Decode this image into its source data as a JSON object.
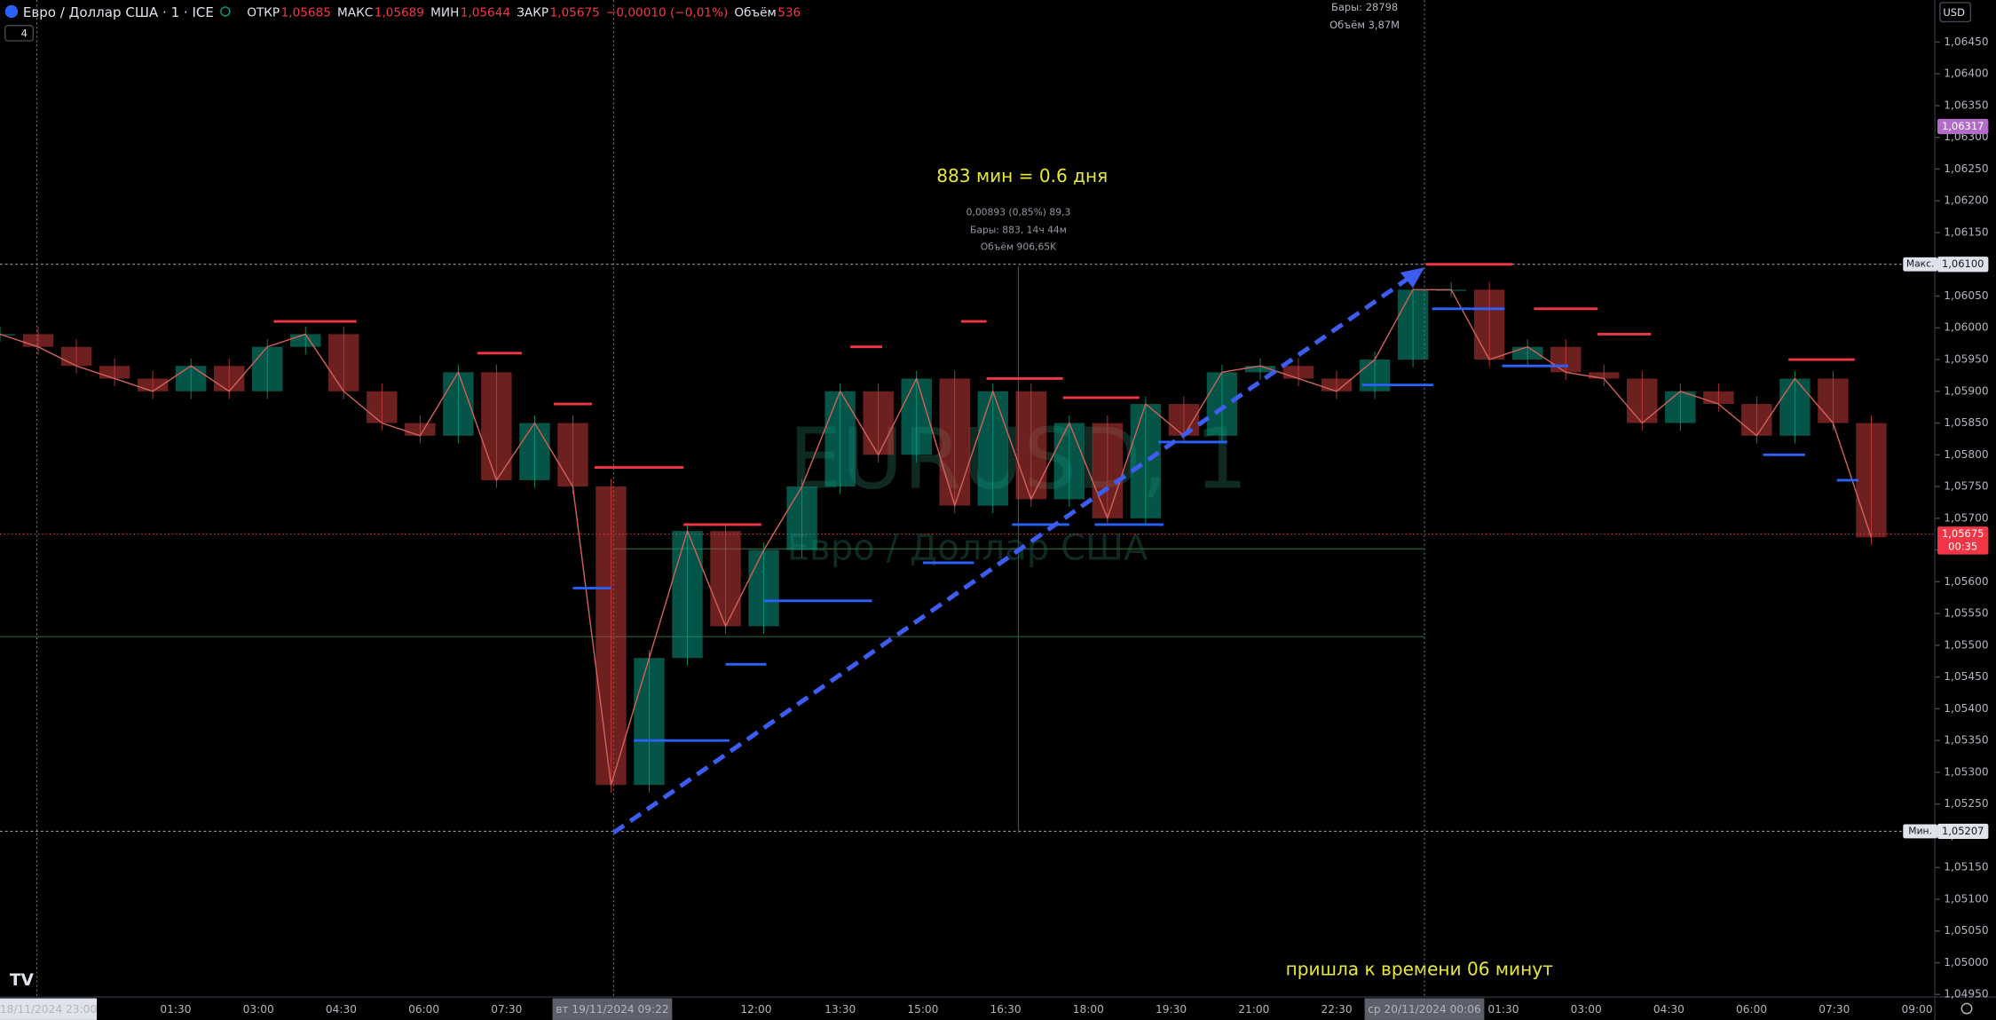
{
  "header": {
    "symbol": "Евро / Доллар США · 1 · ICE",
    "open_label": "ОТКР",
    "open": "1,05685",
    "high_label": "МАКС",
    "high": "1,05689",
    "low_label": "МИН",
    "low": "1,05644",
    "close_label": "ЗАКР",
    "close": "1,05675",
    "change": "−0,00010 (−0,01%)",
    "volume_label": "Объём",
    "volume": "536",
    "indicator": "4",
    "currency": "USD"
  },
  "top_info": {
    "bars": "Бары: 28798",
    "volume": "Объём 3,87M"
  },
  "watermark": {
    "ticker": "EURUSD, 1",
    "name": "Евро / Доллар США"
  },
  "price_axis": {
    "ylim": [
      1.0495,
      1.0645
    ],
    "ticks": [
      {
        "value": 1.0645,
        "label": "1,06450"
      },
      {
        "value": 1.064,
        "label": "1,06400"
      },
      {
        "value": 1.0635,
        "label": "1,06350"
      },
      {
        "value": 1.063,
        "label": "1,06300"
      },
      {
        "value": 1.0625,
        "label": "1,06250"
      },
      {
        "value": 1.062,
        "label": "1,06200"
      },
      {
        "value": 1.0615,
        "label": "1,06150"
      },
      {
        "value": 1.061,
        "label": "1,06100"
      },
      {
        "value": 1.0605,
        "label": "1,06050"
      },
      {
        "value": 1.06,
        "label": "1,06000"
      },
      {
        "value": 1.0595,
        "label": "1,05950"
      },
      {
        "value": 1.059,
        "label": "1,05900"
      },
      {
        "value": 1.0585,
        "label": "1,05850"
      },
      {
        "value": 1.058,
        "label": "1,05800"
      },
      {
        "value": 1.0575,
        "label": "1,05750"
      },
      {
        "value": 1.057,
        "label": "1,05700"
      },
      {
        "value": 1.0565,
        "label": "1,05650"
      },
      {
        "value": 1.056,
        "label": "1,05600"
      },
      {
        "value": 1.0555,
        "label": "1,05550"
      },
      {
        "value": 1.055,
        "label": "1,05500"
      },
      {
        "value": 1.0545,
        "label": "1,05450"
      },
      {
        "value": 1.054,
        "label": "1,05400"
      },
      {
        "value": 1.0535,
        "label": "1,05350"
      },
      {
        "value": 1.053,
        "label": "1,05300"
      },
      {
        "value": 1.0525,
        "label": "1,05250"
      },
      {
        "value": 1.052,
        "label": "1,05200"
      },
      {
        "value": 1.0515,
        "label": "1,05150"
      },
      {
        "value": 1.051,
        "label": "1,05100"
      },
      {
        "value": 1.0505,
        "label": "1,05050"
      },
      {
        "value": 1.05,
        "label": "1,05000"
      },
      {
        "value": 1.0495,
        "label": "1,04950"
      }
    ]
  },
  "badges": [
    {
      "value": 1.06317,
      "label": "1,06317",
      "color": "#b36bc9"
    },
    {
      "value": 1.061,
      "label": "1,06100",
      "tag": "Макс.",
      "color": "#e0e3eb"
    },
    {
      "value": 1.05675,
      "label": "1,05675",
      "timer": "00:35",
      "color": "#f23645"
    },
    {
      "value": 1.05207,
      "label": "1,05207",
      "tag": "Мин.",
      "color": "#e0e3eb"
    }
  ],
  "time_axis": [
    "18/11/2024  23:00",
    "01:30",
    "03:00",
    "04:30",
    "06:00",
    "07:30",
    "вт 19/11/2024  09:22",
    "12:00",
    "13:30",
    "15:00",
    "16:30",
    "18:00",
    "19:30",
    "21:00",
    "22:30",
    "ср 20/11/2024  00:06",
    "01:30",
    "03:00",
    "04:30",
    "06:00",
    "07:30",
    "09:00"
  ],
  "annotations": {
    "duration": "883 мин = 0.6 дня",
    "measure_change": "0,00893 (0,85%) 89,3",
    "measure_bars": "Бары: 883, 14ч 44м",
    "measure_volume": "Объём 906,65K",
    "note": "пришла к времени 06 минут"
  },
  "price_path": [
    1.0599,
    1.0597,
    1.0594,
    1.0592,
    1.059,
    1.0594,
    1.059,
    1.0597,
    1.0599,
    1.059,
    1.0585,
    1.0583,
    1.0593,
    1.0576,
    1.0585,
    1.0575,
    1.0528,
    1.0548,
    1.0568,
    1.0553,
    1.0565,
    1.0575,
    1.059,
    1.058,
    1.0592,
    1.0572,
    1.059,
    1.0573,
    1.0585,
    1.057,
    1.0588,
    1.0583,
    1.0593,
    1.0594,
    1.0592,
    1.059,
    1.0595,
    1.0606,
    1.0606,
    1.0595,
    1.0597,
    1.0593,
    1.0592,
    1.0585,
    1.059,
    1.0588,
    1.0583,
    1.0592,
    1.0585,
    1.0567
  ],
  "high_levels": [
    1.0601,
    1.0596,
    1.0588,
    1.0578,
    1.0569,
    1.0597,
    1.0601,
    1.0592,
    1.0589,
    1.061,
    1.0603,
    1.0599,
    1.0595
  ],
  "low_levels": [
    1.0559,
    1.0535,
    1.0557,
    1.0547,
    1.0563,
    1.0569,
    1.0569,
    1.0582,
    1.0603,
    1.0594,
    1.058,
    1.0576,
    1.0591
  ]
}
